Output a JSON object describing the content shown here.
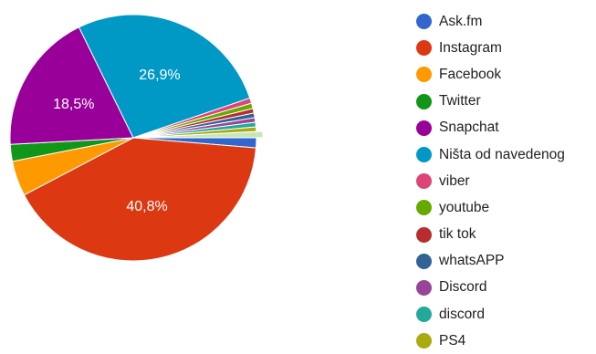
{
  "chart_data": {
    "type": "pie",
    "title": "",
    "series": [
      {
        "name": "Ask.fm",
        "value": 1.3,
        "color": "#3366cc"
      },
      {
        "name": "Instagram",
        "value": 40.8,
        "color": "#dc3912",
        "label": "40,8%"
      },
      {
        "name": "Facebook",
        "value": 4.6,
        "color": "#ff9900"
      },
      {
        "name": "Twitter",
        "value": 2.2,
        "color": "#109618"
      },
      {
        "name": "Snapchat",
        "value": 18.5,
        "color": "#990099",
        "label": "18,5%"
      },
      {
        "name": "Ništa od navedenog",
        "value": 26.9,
        "color": "#0099c6",
        "label": "26,9%"
      },
      {
        "name": "viber",
        "value": 0.7,
        "color": "#dd4477"
      },
      {
        "name": "youtube",
        "value": 0.7,
        "color": "#66aa00"
      },
      {
        "name": "tik tok",
        "value": 0.6,
        "color": "#b82e2e"
      },
      {
        "name": "whatsAPP",
        "value": 0.6,
        "color": "#316395"
      },
      {
        "name": "Discord",
        "value": 0.6,
        "color": "#994499"
      },
      {
        "name": "discord",
        "value": 0.6,
        "color": "#22aa99"
      },
      {
        "name": "PS4",
        "value": 0.6,
        "color": "#aaaa11"
      },
      {
        "name": "",
        "value": 0.8,
        "color": "#c7e6b7"
      }
    ],
    "legend": "right",
    "start_angle_deg": 90,
    "direction": "clockwise"
  }
}
